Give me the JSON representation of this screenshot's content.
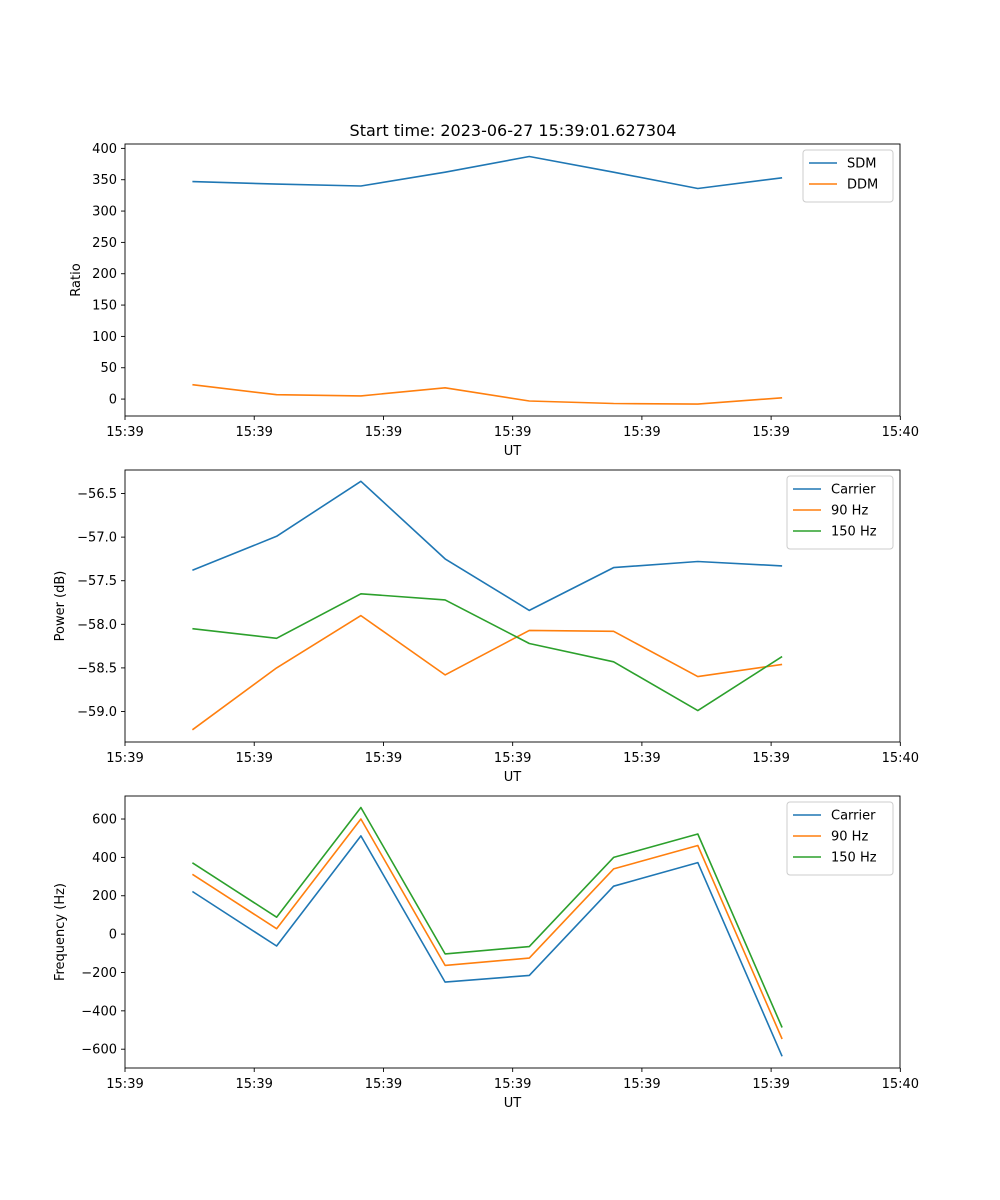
{
  "figure": {
    "title": "Start time: 2023-06-27 15:39:01.627304"
  },
  "chart_data": [
    {
      "type": "line",
      "xlabel": "UT",
      "ylabel": "Ratio",
      "x": [
        1,
        2,
        3,
        4,
        5,
        6,
        7,
        8
      ],
      "xlim": [
        0.2,
        9.4
      ],
      "x_ticks": [
        {
          "value": 0.2,
          "label": "15:39"
        },
        {
          "value": 1.734,
          "label": "15:39"
        },
        {
          "value": 3.268,
          "label": "15:39"
        },
        {
          "value": 4.802,
          "label": "15:39"
        },
        {
          "value": 6.336,
          "label": "15:39"
        },
        {
          "value": 7.87,
          "label": "15:39"
        },
        {
          "value": 9.404,
          "label": "15:40"
        }
      ],
      "ylim": [
        -27,
        407
      ],
      "y_ticks": [
        0,
        50,
        100,
        150,
        200,
        250,
        300,
        350,
        400
      ],
      "legend_position": "upper-right",
      "series": [
        {
          "name": "SDM",
          "color": "#1f77b4",
          "values": [
            347,
            343,
            340,
            362,
            387,
            362,
            336,
            353
          ]
        },
        {
          "name": "DDM",
          "color": "#ff7f0e",
          "values": [
            23,
            7,
            5,
            18,
            -3,
            -7,
            -8,
            2
          ]
        }
      ]
    },
    {
      "type": "line",
      "xlabel": "UT",
      "ylabel": "Power (dB)",
      "x": [
        1,
        2,
        3,
        4,
        5,
        6,
        7,
        8
      ],
      "xlim": [
        0.2,
        9.4
      ],
      "x_ticks": [
        {
          "value": 0.2,
          "label": "15:39"
        },
        {
          "value": 1.734,
          "label": "15:39"
        },
        {
          "value": 3.268,
          "label": "15:39"
        },
        {
          "value": 4.802,
          "label": "15:39"
        },
        {
          "value": 6.336,
          "label": "15:39"
        },
        {
          "value": 7.87,
          "label": "15:39"
        },
        {
          "value": 9.404,
          "label": "15:40"
        }
      ],
      "ylim": [
        -59.35,
        -56.23
      ],
      "y_ticks": [
        {
          "value": -59.0,
          "label": "−59.0"
        },
        {
          "value": -58.5,
          "label": "−58.5"
        },
        {
          "value": -58.0,
          "label": "−58.0"
        },
        {
          "value": -57.5,
          "label": "−57.5"
        },
        {
          "value": -57.0,
          "label": "−57.0"
        },
        {
          "value": -56.5,
          "label": "−56.5"
        }
      ],
      "legend_position": "upper-right",
      "series": [
        {
          "name": "Carrier",
          "color": "#1f77b4",
          "values": [
            -57.38,
            -56.99,
            -56.36,
            -57.25,
            -57.84,
            -57.35,
            -57.28,
            -57.33
          ]
        },
        {
          "name": "90 Hz",
          "color": "#ff7f0e",
          "values": [
            -59.21,
            -58.5,
            -57.9,
            -58.58,
            -58.07,
            -58.08,
            -58.6,
            -58.46
          ]
        },
        {
          "name": "150 Hz",
          "color": "#2ca02c",
          "values": [
            -58.05,
            -58.16,
            -57.65,
            -57.72,
            -58.22,
            -58.43,
            -58.99,
            -58.37
          ]
        }
      ]
    },
    {
      "type": "line",
      "xlabel": "UT",
      "ylabel": "Frequency (Hz)",
      "x": [
        1,
        2,
        3,
        4,
        5,
        6,
        7,
        8
      ],
      "xlim": [
        0.2,
        9.4
      ],
      "x_ticks": [
        {
          "value": 0.2,
          "label": "15:39"
        },
        {
          "value": 1.734,
          "label": "15:39"
        },
        {
          "value": 3.268,
          "label": "15:39"
        },
        {
          "value": 4.802,
          "label": "15:39"
        },
        {
          "value": 6.336,
          "label": "15:39"
        },
        {
          "value": 7.87,
          "label": "15:39"
        },
        {
          "value": 9.404,
          "label": "15:40"
        }
      ],
      "ylim": [
        -698,
        720
      ],
      "y_ticks": [
        {
          "value": -600,
          "label": "−600"
        },
        {
          "value": -400,
          "label": "−400"
        },
        {
          "value": -200,
          "label": "−200"
        },
        {
          "value": 0,
          "label": "0"
        },
        {
          "value": 200,
          "label": "200"
        },
        {
          "value": 400,
          "label": "400"
        },
        {
          "value": 600,
          "label": "600"
        }
      ],
      "legend_position": "upper-right",
      "series": [
        {
          "name": "Carrier",
          "color": "#1f77b4",
          "values": [
            222,
            -62,
            512,
            -250,
            -215,
            250,
            373,
            -637
          ]
        },
        {
          "name": "90 Hz",
          "color": "#ff7f0e",
          "values": [
            312,
            28,
            600,
            -163,
            -125,
            340,
            462,
            -547
          ]
        },
        {
          "name": "150 Hz",
          "color": "#2ca02c",
          "values": [
            372,
            88,
            660,
            -103,
            -65,
            400,
            522,
            -487
          ]
        }
      ]
    }
  ]
}
